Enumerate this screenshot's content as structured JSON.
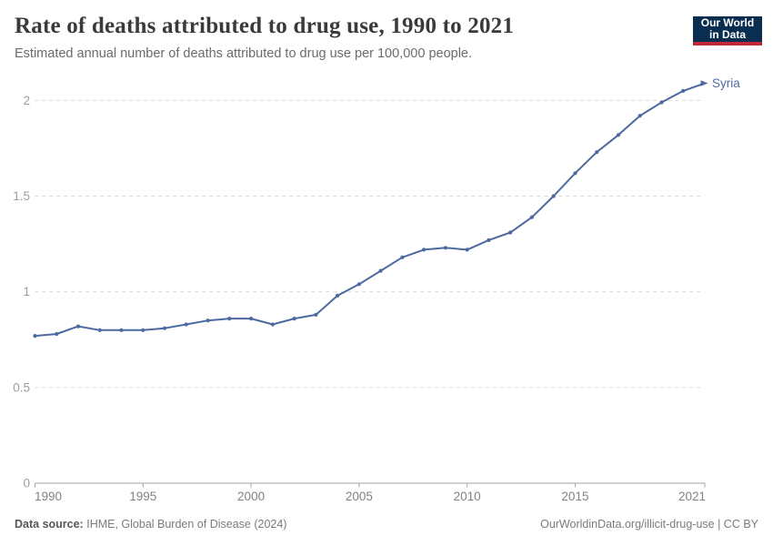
{
  "header": {
    "title": "Rate of deaths attributed to drug use, 1990 to 2021",
    "subtitle": "Estimated annual number of deaths attributed to drug use per 100,000 people."
  },
  "logo": {
    "line1": "Our World",
    "line2": "in Data",
    "bg_color": "#0a2e4f",
    "accent_color": "#c0293a"
  },
  "chart_data": {
    "type": "line",
    "title": "Rate of deaths attributed to drug use, 1990 to 2021",
    "subtitle": "Estimated annual number of deaths attributed to drug use per 100,000 people.",
    "xlabel": "",
    "ylabel": "",
    "x": [
      1990,
      1991,
      1992,
      1993,
      1994,
      1995,
      1996,
      1997,
      1998,
      1999,
      2000,
      2001,
      2002,
      2003,
      2004,
      2005,
      2006,
      2007,
      2008,
      2009,
      2010,
      2011,
      2012,
      2013,
      2014,
      2015,
      2016,
      2017,
      2018,
      2019,
      2020,
      2021
    ],
    "series": [
      {
        "name": "Syria",
        "color": "#4c6a9f",
        "values": [
          0.77,
          0.78,
          0.82,
          0.8,
          0.8,
          0.8,
          0.81,
          0.83,
          0.85,
          0.86,
          0.86,
          0.83,
          0.86,
          0.88,
          0.98,
          1.04,
          1.11,
          1.18,
          1.22,
          1.23,
          1.22,
          1.27,
          1.31,
          1.39,
          1.5,
          1.62,
          1.73,
          1.82,
          1.92,
          1.99,
          2.05,
          2.09
        ]
      }
    ],
    "xlim": [
      1990,
      2021
    ],
    "ylim": [
      0,
      2.2
    ],
    "y_ticks": [
      0,
      0.5,
      1,
      1.5,
      2
    ],
    "x_ticks": [
      1990,
      1995,
      2000,
      2005,
      2010,
      2015,
      2021
    ],
    "grid": "horizontal-dashed",
    "legend": "end-of-line-label"
  },
  "footer": {
    "source_label": "Data source:",
    "source_text": "IHME, Global Burden of Disease (2024)",
    "link_text": "OurWorldinData.org/illicit-drug-use | CC BY"
  }
}
